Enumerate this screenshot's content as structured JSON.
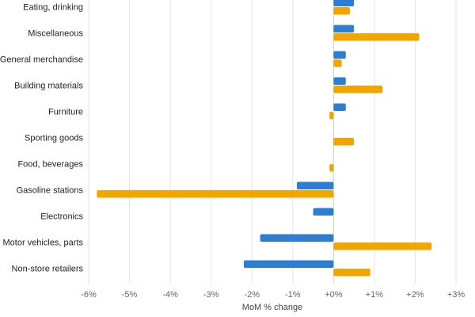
{
  "chart_data": {
    "type": "bar",
    "orientation": "horizontal",
    "title": "",
    "xlabel": "MoM % change",
    "ylabel": "",
    "xlim": [
      -6,
      3
    ],
    "grid": true,
    "legend": "none",
    "categories": [
      "Eating, drinking",
      "Miscellaneous",
      "General merchandise",
      "Building materials",
      "Furniture",
      "Sporting goods",
      "Food, beverages",
      "Gasoline stations",
      "Electronics",
      "Motor vehicles, parts",
      "Non-store retailers"
    ],
    "series": [
      {
        "color": "#2d7dd2",
        "values": [
          0.5,
          0.5,
          0.3,
          0.3,
          0.3,
          0.0,
          0.0,
          -0.9,
          -0.5,
          -1.8,
          -2.2
        ]
      },
      {
        "color": "#f0a500",
        "values": [
          0.4,
          2.1,
          0.2,
          1.2,
          -0.1,
          0.5,
          -0.1,
          -5.8,
          0.0,
          2.4,
          0.9
        ]
      }
    ],
    "ticks": [
      {
        "value": -6,
        "label": "-6%"
      },
      {
        "value": -5,
        "label": "-5%"
      },
      {
        "value": -4,
        "label": "-4%"
      },
      {
        "value": -3,
        "label": "-3%"
      },
      {
        "value": -2,
        "label": "-2%"
      },
      {
        "value": -1,
        "label": "-1%"
      },
      {
        "value": 0,
        "label": "+0%"
      },
      {
        "value": 1,
        "label": "+1%"
      },
      {
        "value": 2,
        "label": "+2%"
      },
      {
        "value": 3,
        "label": "+3%"
      }
    ]
  }
}
